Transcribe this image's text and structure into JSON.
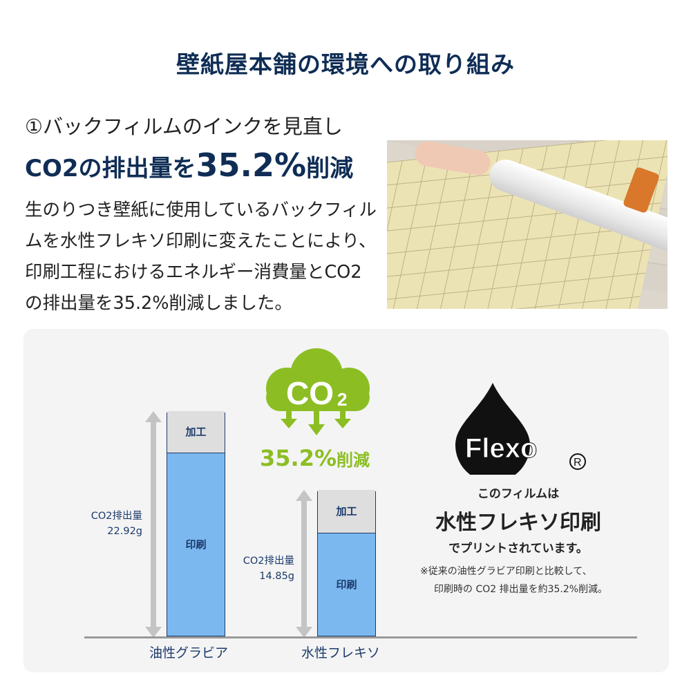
{
  "header": {
    "title": "壁紙屋本舗の環境への取り組み"
  },
  "section": {
    "subtitle": "①バックフィルムのインクを見直し",
    "headline_pre": "CO2の排出量を",
    "headline_value": "35.2%",
    "headline_post": "削減",
    "body": "生のりつき壁紙に使用しているバックフィルムを水性フレキソ印刷に変えたことにより、印刷工程におけるエネルギー消費量とCO2の排出量を35.2%削減しました。"
  },
  "badge": {
    "co2": "CO",
    "co2_sub": "2",
    "reduction_value": "35.2%",
    "reduction_label": "削減",
    "color": "#8cbe24"
  },
  "flexo": {
    "logo": "Flexo",
    "registered": "®",
    "line1": "このフィルムは",
    "line2": "水性フレキソ印刷",
    "line3": "でプリントされています。",
    "note1": "※従来の油性グラビア印刷と比較して、",
    "note2": "印刷時の CO2 排出量を約35.2%削減。"
  },
  "chart_data": {
    "type": "bar",
    "stacked": true,
    "categories": [
      "油性グラビア",
      "水性フレキソ"
    ],
    "series": [
      {
        "name": "印刷",
        "values": [
          18.7,
          10.5
        ],
        "color": "#7cb8f0"
      },
      {
        "name": "加工",
        "values": [
          4.22,
          4.35
        ],
        "color": "#dedede"
      }
    ],
    "totals": [
      22.92,
      14.85
    ],
    "total_labels": [
      {
        "label": "CO2排出量",
        "value": "22.92g"
      },
      {
        "label": "CO2排出量",
        "value": "14.85g"
      }
    ],
    "ylim": [
      0,
      22.92
    ]
  }
}
